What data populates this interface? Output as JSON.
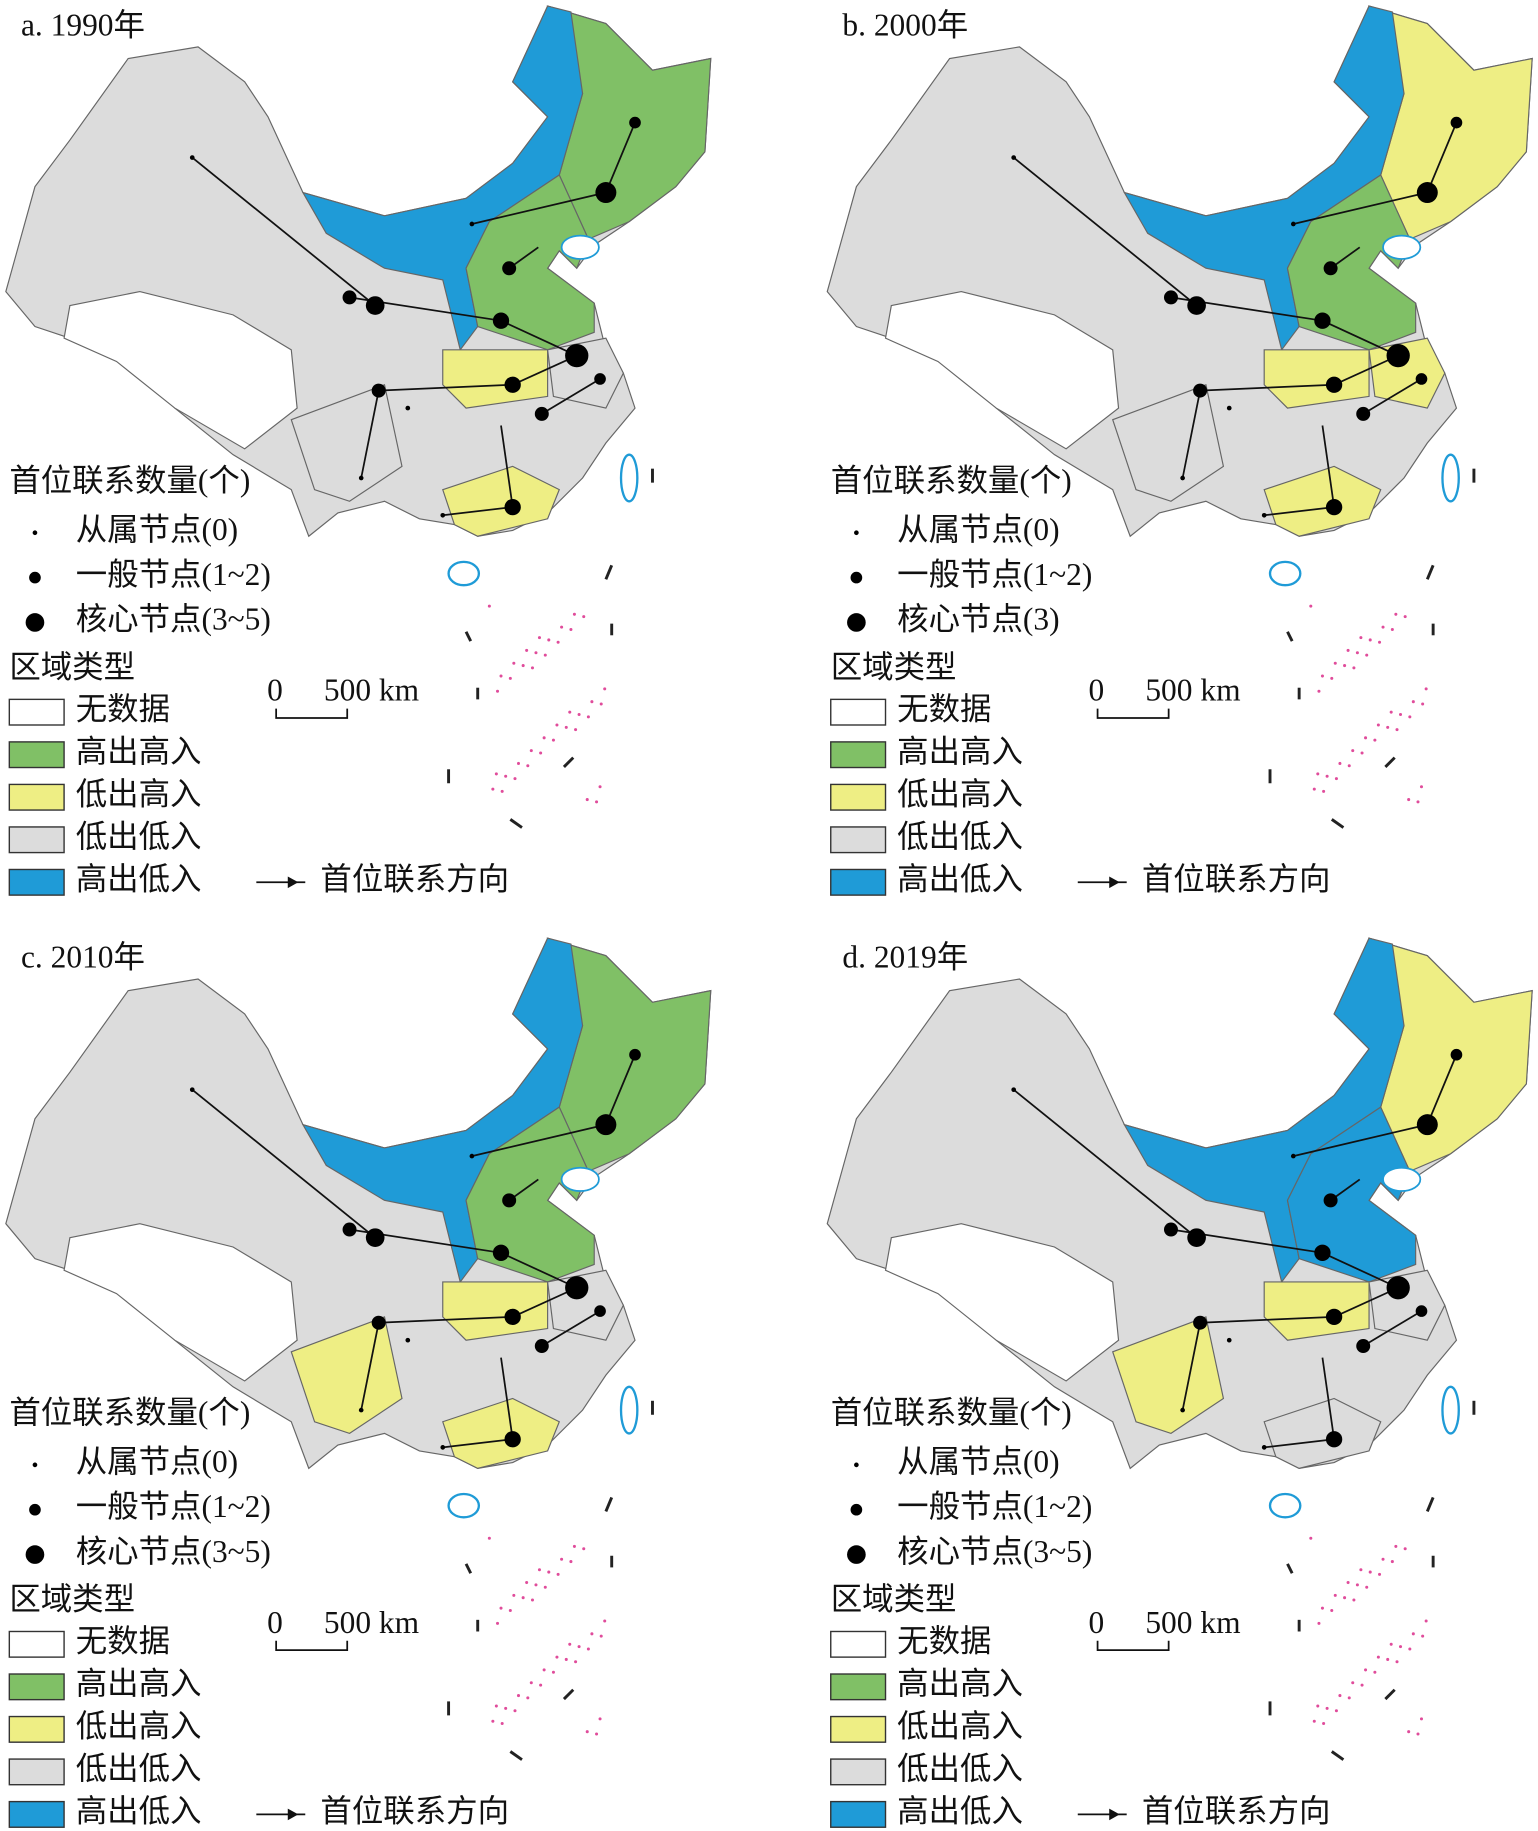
{
  "panels": [
    {
      "title": "a. 1990年",
      "node_legend": {
        "title": "首位联系数量(个)",
        "items": [
          "从属节点(0)",
          "一般节点(1~2)",
          "核心节点(3~5)"
        ]
      },
      "region_legend": {
        "title": "区域类型",
        "items": [
          {
            "label": "无数据",
            "color": "#ffffff"
          },
          {
            "label": "高出高入",
            "color": "#80c066"
          },
          {
            "label": "低出高入",
            "color": "#eeee84"
          },
          {
            "label": "低出低入",
            "color": "#dcdcdc"
          },
          {
            "label": "高出低入",
            "color": "#1f9bd7"
          }
        ]
      },
      "scale": {
        "start": "0",
        "end": "500 km"
      },
      "arrow_label": "首位联系方向"
    },
    {
      "title": "b. 2000年",
      "node_legend": {
        "title": "首位联系数量(个)",
        "items": [
          "从属节点(0)",
          "一般节点(1~2)",
          "核心节点(3)"
        ]
      },
      "region_legend": {
        "title": "区域类型",
        "items": [
          {
            "label": "无数据",
            "color": "#ffffff"
          },
          {
            "label": "高出高入",
            "color": "#80c066"
          },
          {
            "label": "低出高入",
            "color": "#eeee84"
          },
          {
            "label": "低出低入",
            "color": "#dcdcdc"
          },
          {
            "label": "高出低入",
            "color": "#1f9bd7"
          }
        ]
      },
      "scale": {
        "start": "0",
        "end": "500 km"
      },
      "arrow_label": "首位联系方向"
    },
    {
      "title": "c. 2010年",
      "node_legend": {
        "title": "首位联系数量(个)",
        "items": [
          "从属节点(0)",
          "一般节点(1~2)",
          "核心节点(3~5)"
        ]
      },
      "region_legend": {
        "title": "区域类型",
        "items": [
          {
            "label": "无数据",
            "color": "#ffffff"
          },
          {
            "label": "高出高入",
            "color": "#80c066"
          },
          {
            "label": "低出高入",
            "color": "#eeee84"
          },
          {
            "label": "低出低入",
            "color": "#dcdcdc"
          },
          {
            "label": "高出低入",
            "color": "#1f9bd7"
          }
        ]
      },
      "scale": {
        "start": "0",
        "end": "500 km"
      },
      "arrow_label": "首位联系方向"
    },
    {
      "title": "d. 2019年",
      "node_legend": {
        "title": "首位联系数量(个)",
        "items": [
          "从属节点(0)",
          "一般节点(1~2)",
          "核心节点(3~5)"
        ]
      },
      "region_legend": {
        "title": "区域类型",
        "items": [
          {
            "label": "无数据",
            "color": "#ffffff"
          },
          {
            "label": "高出高入",
            "color": "#80c066"
          },
          {
            "label": "低出高入",
            "color": "#eeee84"
          },
          {
            "label": "低出低入",
            "color": "#dcdcdc"
          },
          {
            "label": "高出低入",
            "color": "#1f9bd7"
          }
        ]
      },
      "scale": {
        "start": "0",
        "end": "500 km"
      },
      "arrow_label": "首位联系方向"
    }
  ]
}
